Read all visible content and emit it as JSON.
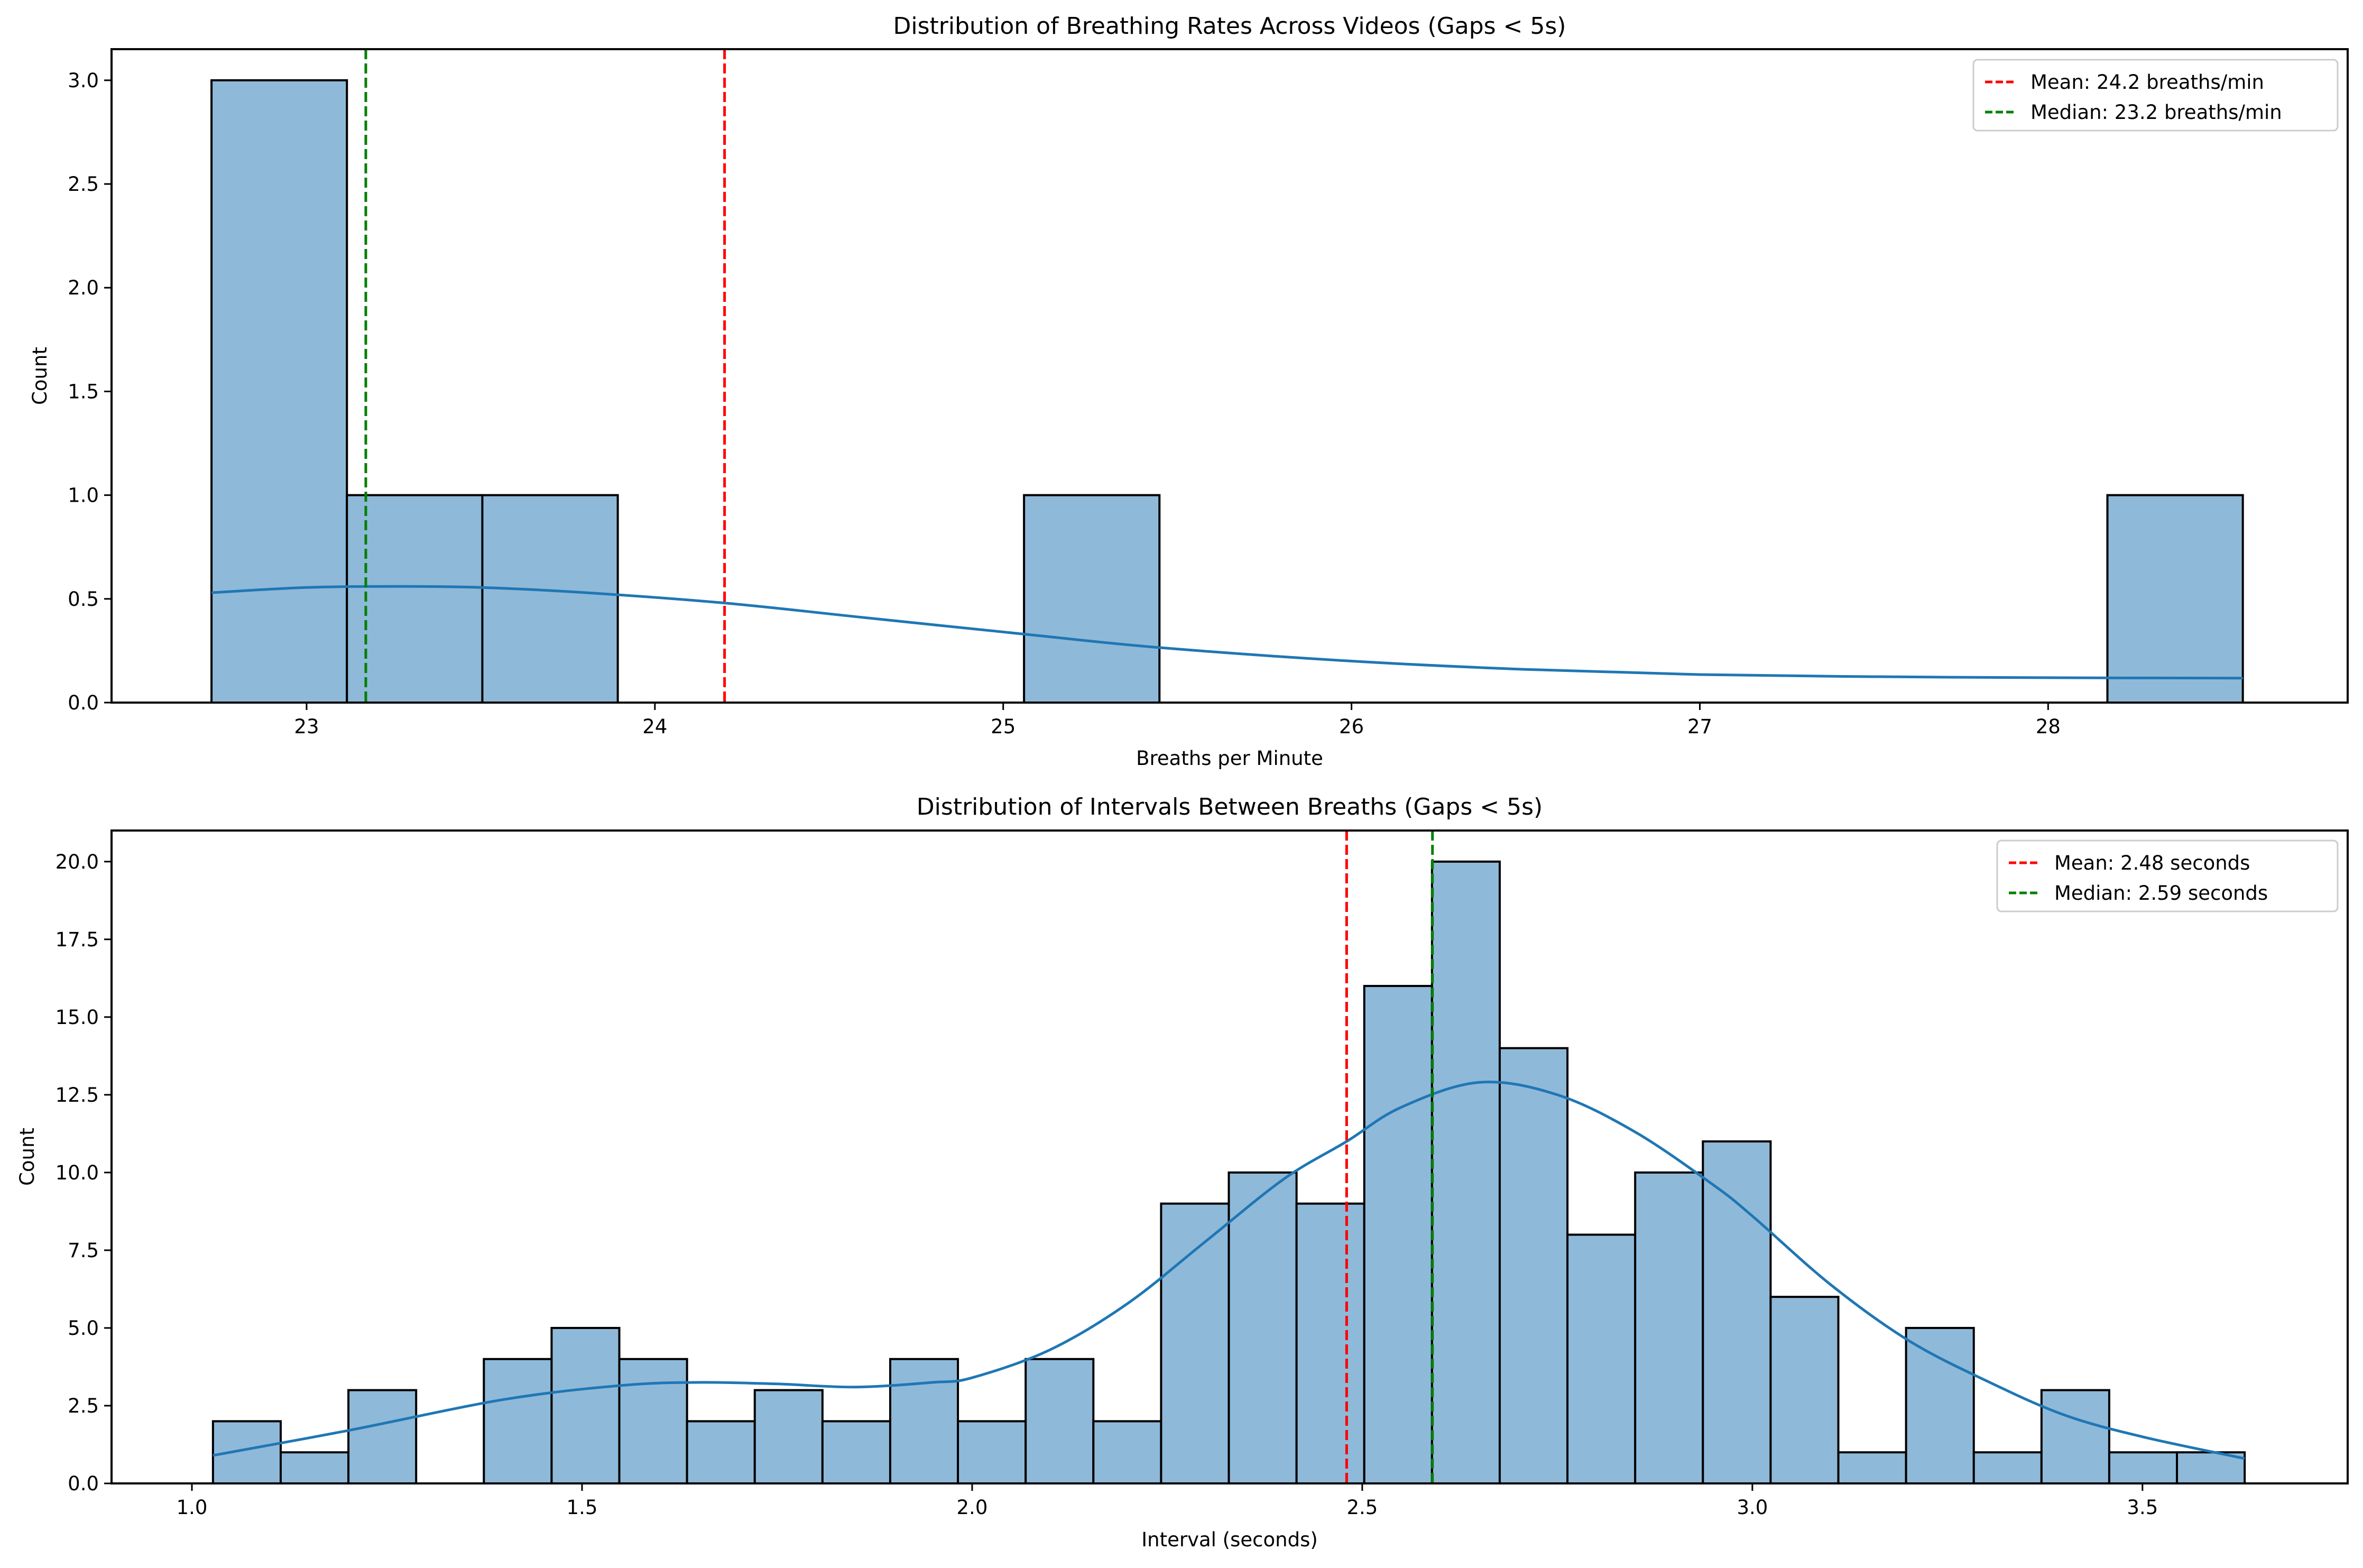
{
  "chart_data": [
    {
      "type": "bar",
      "subtype": "histogram_with_kde",
      "title": "Distribution of Breathing Rates Across Videos (Gaps < 5s)",
      "xlabel": "Breaths per Minute",
      "ylabel": "Count",
      "xlim": [
        22.44,
        28.86
      ],
      "ylim": [
        0,
        3.15
      ],
      "xticks": [
        23,
        24,
        25,
        26,
        27,
        28
      ],
      "xtick_labels": [
        "23",
        "24",
        "25",
        "26",
        "27",
        "28"
      ],
      "yticks": [
        0,
        0.5,
        1.0,
        1.5,
        2.0,
        2.5,
        3.0
      ],
      "ytick_labels": [
        "0.0",
        "0.5",
        "1.0",
        "1.5",
        "2.0",
        "2.5",
        "3.0"
      ],
      "grid": false,
      "bin_start": 22.727,
      "bin_width": 0.3888,
      "counts": [
        3,
        1,
        1,
        0,
        0,
        0,
        1,
        0,
        0,
        0,
        0,
        0,
        0,
        0,
        1
      ],
      "bar_color": "#8fb9d9",
      "kde": {
        "color": "#1f77b4",
        "x": [
          22.727,
          23.0,
          23.25,
          23.5,
          23.8,
          24.2,
          24.6,
          25.06,
          25.45,
          26.0,
          26.5,
          27.0,
          27.5,
          28.0,
          28.559
        ],
        "y": [
          0.53,
          0.555,
          0.56,
          0.555,
          0.53,
          0.48,
          0.41,
          0.33,
          0.265,
          0.2,
          0.16,
          0.135,
          0.125,
          0.12,
          0.118
        ]
      },
      "reference_lines": [
        {
          "name": "mean",
          "x": 24.2,
          "color": "#ff0000",
          "label": "Mean: 24.2 breaths/min"
        },
        {
          "name": "median",
          "x": 23.17,
          "color": "#008000",
          "label": "Median: 23.2 breaths/min"
        }
      ],
      "legend_position": "top-right"
    },
    {
      "type": "bar",
      "subtype": "histogram_with_kde",
      "title": "Distribution of Intervals Between Breaths (Gaps < 5s)",
      "xlabel": "Interval (seconds)",
      "ylabel": "Count",
      "xlim": [
        0.897,
        3.763
      ],
      "ylim": [
        0,
        21
      ],
      "xticks": [
        1.0,
        1.5,
        2.0,
        2.5,
        3.0,
        3.5
      ],
      "xtick_labels": [
        "1.0",
        "1.5",
        "2.0",
        "2.5",
        "3.0",
        "3.5"
      ],
      "yticks": [
        0,
        2.5,
        5,
        7.5,
        10,
        12.5,
        15,
        17.5,
        20
      ],
      "ytick_labels": [
        "0.0",
        "2.5",
        "5.0",
        "7.5",
        "10.0",
        "12.5",
        "15.0",
        "17.5",
        "20.0"
      ],
      "grid": false,
      "bin_start": 1.027,
      "bin_width": 0.0868,
      "counts": [
        2,
        1,
        3,
        0,
        4,
        5,
        4,
        2,
        3,
        2,
        4,
        2,
        4,
        2,
        9,
        10,
        9,
        16,
        20,
        14,
        8,
        10,
        11,
        6,
        1,
        5,
        1,
        3,
        1,
        1
      ],
      "bar_color": "#8fb9d9",
      "kde": {
        "color": "#1f77b4",
        "x": [
          1.027,
          1.2,
          1.4,
          1.55,
          1.65,
          1.75,
          1.85,
          1.95,
          2.0,
          2.1,
          2.2,
          2.3,
          2.4,
          2.48,
          2.55,
          2.65,
          2.75,
          2.85,
          2.95,
          3.0,
          3.1,
          3.2,
          3.3,
          3.4,
          3.5,
          3.631
        ],
        "y": [
          0.9,
          1.7,
          2.7,
          3.15,
          3.25,
          3.2,
          3.1,
          3.25,
          3.4,
          4.3,
          5.8,
          7.8,
          9.8,
          11.0,
          12.1,
          12.9,
          12.5,
          11.3,
          9.6,
          8.6,
          6.4,
          4.6,
          3.3,
          2.2,
          1.5,
          0.8
        ]
      },
      "reference_lines": [
        {
          "name": "mean",
          "x": 2.48,
          "color": "#ff0000",
          "label": "Mean: 2.48 seconds"
        },
        {
          "name": "median",
          "x": 2.59,
          "color": "#008000",
          "label": "Median: 2.59 seconds"
        }
      ],
      "legend_position": "top-right"
    }
  ]
}
